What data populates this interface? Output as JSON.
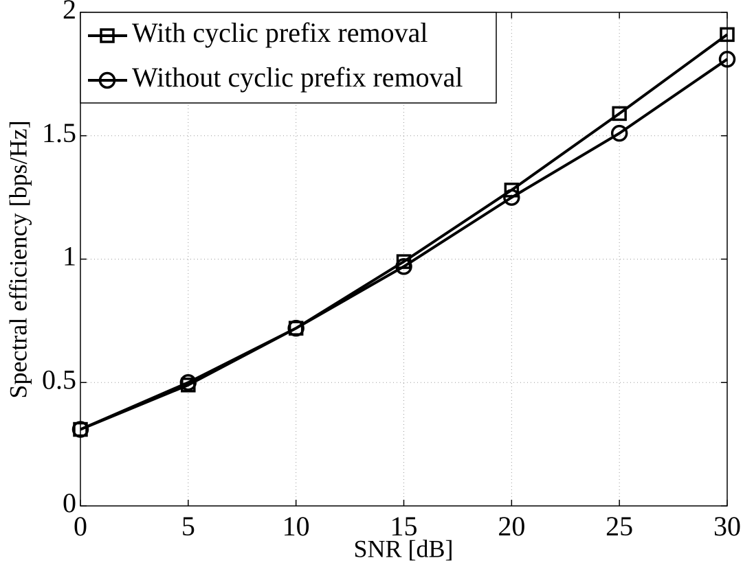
{
  "chart_data": {
    "type": "line",
    "xlabel": "SNR [dB]",
    "ylabel": "Spectral efficiency [bps/Hz]",
    "x": [
      0,
      5,
      10,
      15,
      20,
      25,
      30
    ],
    "series": [
      {
        "name": "With cyclic prefix removal",
        "color": "#000000",
        "marker": "square",
        "values": [
          0.31,
          0.49,
          0.72,
          0.99,
          1.28,
          1.59,
          1.91
        ]
      },
      {
        "name": "Without cyclic prefix removal",
        "color": "#000000",
        "marker": "circle",
        "values": [
          0.31,
          0.5,
          0.72,
          0.97,
          1.25,
          1.51,
          1.81
        ]
      }
    ],
    "xlim": [
      0,
      30
    ],
    "xticks": [
      0,
      5,
      10,
      15,
      20,
      25,
      30
    ],
    "ylim": [
      0,
      2
    ],
    "yticks": [
      0,
      0.5,
      1,
      1.5,
      2
    ],
    "grid": true,
    "legend": "upper left"
  }
}
